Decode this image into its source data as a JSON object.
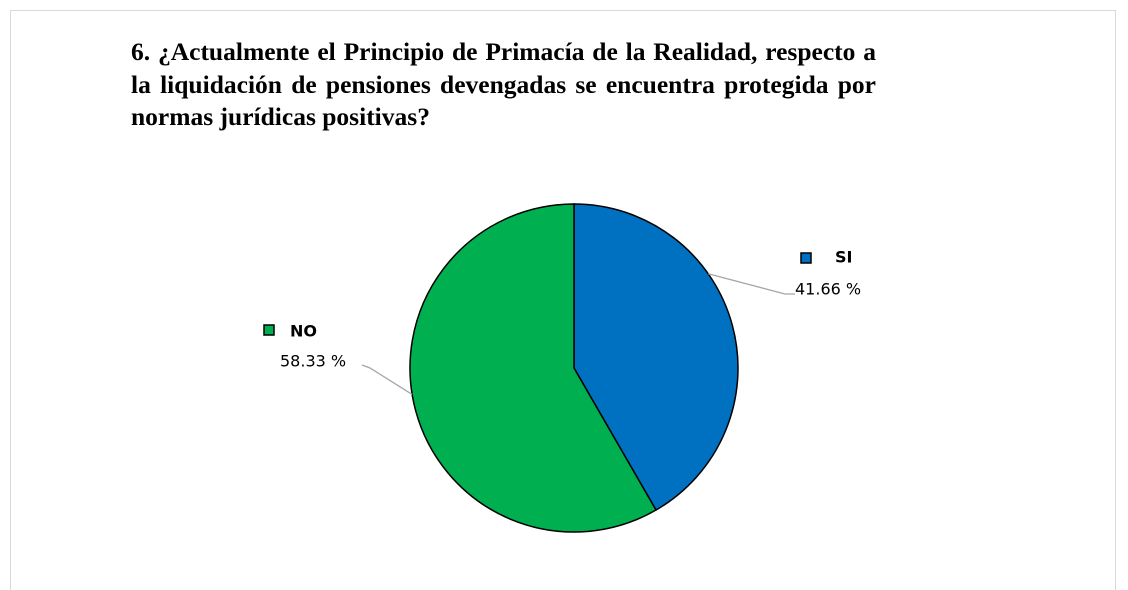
{
  "chart_data": {
    "type": "pie",
    "title": "6. ¿Actualmente el Principio de Primacía de la Realidad, respecto a la liquidación de pensiones devengadas se encuentra protegida por normas jurídicas positivas?",
    "categories": [
      "SI",
      "NO"
    ],
    "values": [
      41.66,
      58.33
    ],
    "value_labels": [
      "41.66 %",
      "58.33 %"
    ],
    "colors": [
      "#0070c0",
      "#00b050"
    ]
  }
}
